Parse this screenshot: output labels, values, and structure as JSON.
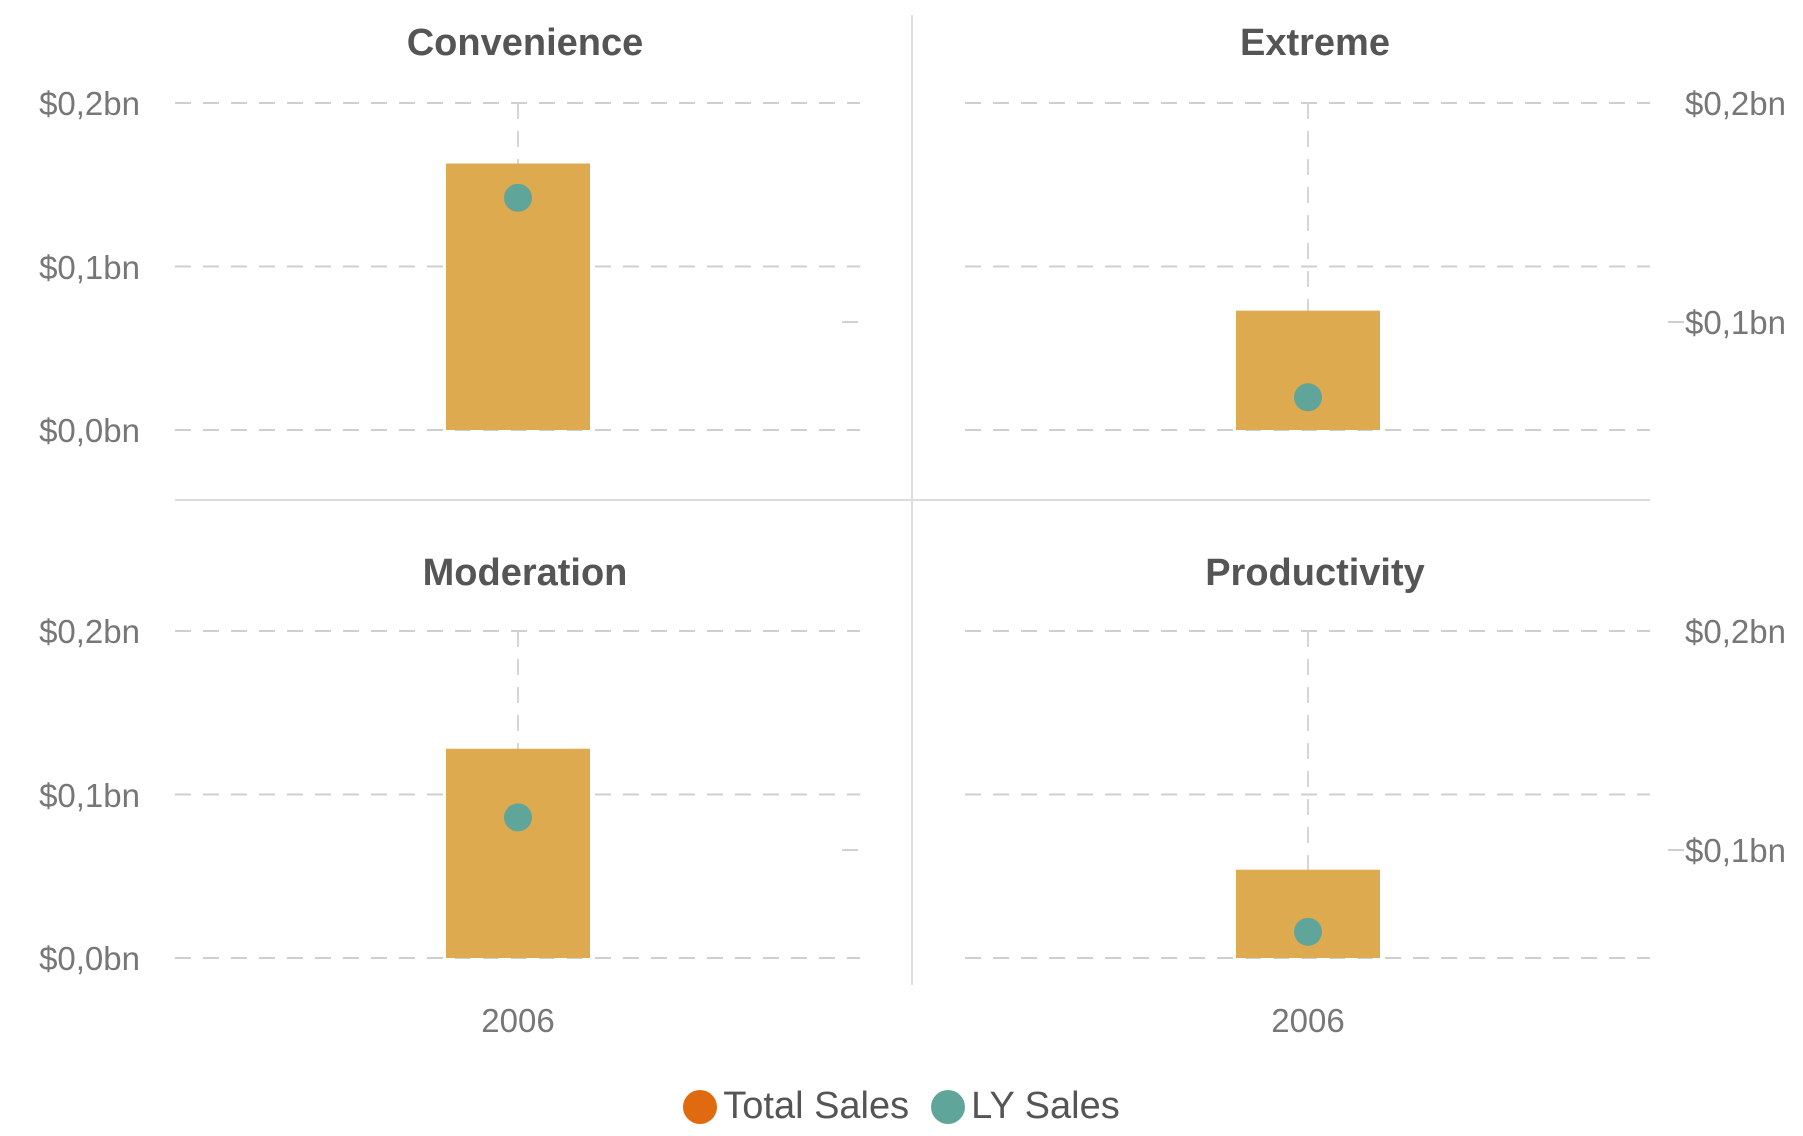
{
  "chart_data": {
    "type": "bar",
    "panels": [
      {
        "title": "Convenience",
        "category": "2006",
        "total_sales": 0.163,
        "ly_sales": 0.142,
        "axis_side": "left",
        "ylim": [
          0,
          0.2
        ],
        "ticks": [
          "$0,2bn",
          "$0,1bn",
          "$0,0bn"
        ]
      },
      {
        "title": "Extreme",
        "category": "2006",
        "total_sales": 0.073,
        "ly_sales": 0.02,
        "axis_side": "right",
        "ylim": [
          0,
          0.2
        ],
        "ticks": [
          "$0,2bn",
          "$0,1bn"
        ]
      },
      {
        "title": "Moderation",
        "category": "2006",
        "total_sales": 0.128,
        "ly_sales": 0.086,
        "axis_side": "left",
        "ylim": [
          0,
          0.2
        ],
        "ticks": [
          "$0,2bn",
          "$0,1bn",
          "$0,0bn"
        ]
      },
      {
        "title": "Productivity",
        "category": "2006",
        "total_sales": 0.054,
        "ly_sales": 0.016,
        "axis_side": "right",
        "ylim": [
          0,
          0.2
        ],
        "ticks": [
          "$0,2bn",
          "$0,1bn"
        ]
      }
    ],
    "x_labels": [
      "2006",
      "2006"
    ],
    "legend": [
      {
        "label": "Total Sales",
        "color": "#E06A10"
      },
      {
        "label": "LY Sales",
        "color": "#5FA59A"
      }
    ],
    "bar_color": "#DDAA50",
    "dot_color": "#5FA59A",
    "grid": true,
    "legend_position": "bottom-center"
  }
}
